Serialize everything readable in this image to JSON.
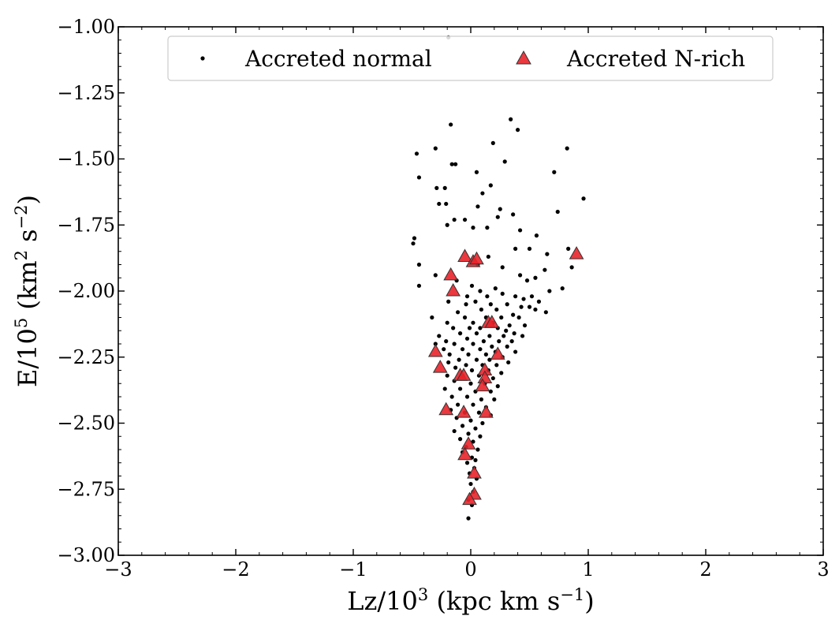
{
  "chart_data": {
    "type": "scatter",
    "xlabel": "Lz/10",
    "xlabel_exp": "3",
    "xlabel_unit_prefix": " (kpc km s",
    "xlabel_unit_exp": "−1",
    "xlabel_unit_suffix": ")",
    "ylabel": "E/10",
    "ylabel_exp": "5",
    "ylabel_unit_prefix": " (km",
    "ylabel_unit_exp1": "2",
    "ylabel_unit_mid": " s",
    "ylabel_unit_exp2": "−2",
    "ylabel_unit_suffix": ")",
    "xlim": [
      -3,
      3
    ],
    "ylim": [
      -3.0,
      -1.0
    ],
    "xticks": [
      -3,
      -2,
      -1,
      0,
      1,
      2,
      3
    ],
    "xtick_labels": [
      "−3",
      "−2",
      "−1",
      "0",
      "1",
      "2",
      "3"
    ],
    "yticks": [
      -1.0,
      -1.25,
      -1.5,
      -1.75,
      -2.0,
      -2.25,
      -2.5,
      -2.75,
      -3.0
    ],
    "ytick_labels": [
      "−1.00",
      "−1.25",
      "−1.50",
      "−1.75",
      "−2.00",
      "−2.25",
      "−2.50",
      "−2.75",
      "−3.00"
    ],
    "grid": false,
    "legend_position": "top",
    "series": [
      {
        "name": "Accreted normal",
        "marker": "dot",
        "color": "#000000",
        "points": [
          [
            -0.19,
            -1.04
          ],
          [
            0.34,
            -1.35
          ],
          [
            0.4,
            -1.39
          ],
          [
            -0.17,
            -1.37
          ],
          [
            0.19,
            -1.44
          ],
          [
            0.82,
            -1.46
          ],
          [
            -0.46,
            -1.48
          ],
          [
            -0.3,
            -1.46
          ],
          [
            -0.16,
            -1.52
          ],
          [
            -0.13,
            -1.52
          ],
          [
            0.29,
            -1.51
          ],
          [
            0.05,
            -1.55
          ],
          [
            0.71,
            -1.55
          ],
          [
            -0.44,
            -1.57
          ],
          [
            0.17,
            -1.6
          ],
          [
            -0.29,
            -1.61
          ],
          [
            -0.22,
            -1.61
          ],
          [
            0.1,
            -1.63
          ],
          [
            0.96,
            -1.65
          ],
          [
            -0.27,
            -1.67
          ],
          [
            -0.21,
            -1.67
          ],
          [
            0.06,
            -1.68
          ],
          [
            0.25,
            -1.69
          ],
          [
            0.74,
            -1.7
          ],
          [
            0.36,
            -1.71
          ],
          [
            -0.14,
            -1.73
          ],
          [
            0.23,
            -1.72
          ],
          [
            -0.05,
            -1.73
          ],
          [
            -0.2,
            -1.75
          ],
          [
            0.02,
            -1.76
          ],
          [
            0.14,
            -1.76
          ],
          [
            0.42,
            -1.77
          ],
          [
            -0.48,
            -1.8
          ],
          [
            -0.49,
            -1.82
          ],
          [
            0.56,
            -1.79
          ],
          [
            0.5,
            -1.84
          ],
          [
            0.83,
            -1.84
          ],
          [
            0.38,
            -1.84
          ],
          [
            0.65,
            -1.86
          ],
          [
            0.15,
            -1.87
          ],
          [
            -0.44,
            -1.9
          ],
          [
            0.06,
            -1.9
          ],
          [
            0.27,
            -1.91
          ],
          [
            0.63,
            -1.92
          ],
          [
            0.86,
            -1.91
          ],
          [
            -0.3,
            -1.94
          ],
          [
            -0.12,
            -1.96
          ],
          [
            0.42,
            -1.94
          ],
          [
            0.55,
            -1.95
          ],
          [
            0.48,
            -1.96
          ],
          [
            -0.44,
            -1.98
          ],
          [
            0.78,
            -1.99
          ],
          [
            0.01,
            -1.98
          ],
          [
            0.21,
            -1.99
          ],
          [
            0.08,
            -2.0
          ],
          [
            0.67,
            -2.0
          ],
          [
            -0.03,
            -2.02
          ],
          [
            0.14,
            -2.02
          ],
          [
            0.27,
            -2.01
          ],
          [
            0.38,
            -2.02
          ],
          [
            0.45,
            -2.03
          ],
          [
            0.52,
            -2.02
          ],
          [
            0.58,
            -2.04
          ],
          [
            -0.19,
            -2.04
          ],
          [
            -0.04,
            -2.05
          ],
          [
            0.04,
            -2.04
          ],
          [
            0.17,
            -2.05
          ],
          [
            0.31,
            -2.05
          ],
          [
            0.43,
            -2.06
          ],
          [
            0.5,
            -2.06
          ],
          [
            0.55,
            -2.07
          ],
          [
            -0.11,
            -2.08
          ],
          [
            0.09,
            -2.07
          ],
          [
            0.22,
            -2.07
          ],
          [
            0.36,
            -2.09
          ],
          [
            0.64,
            -2.08
          ],
          [
            -0.33,
            -2.1
          ],
          [
            -0.05,
            -2.1
          ],
          [
            0.13,
            -2.1
          ],
          [
            0.26,
            -2.1
          ],
          [
            0.41,
            -2.1
          ],
          [
            -0.2,
            -2.12
          ],
          [
            0.02,
            -2.12
          ],
          [
            0.19,
            -2.12
          ],
          [
            0.33,
            -2.13
          ],
          [
            0.46,
            -2.13
          ],
          [
            -0.15,
            -2.14
          ],
          [
            -0.01,
            -2.14
          ],
          [
            0.08,
            -2.14
          ],
          [
            0.23,
            -2.14
          ],
          [
            0.3,
            -2.15
          ],
          [
            0.37,
            -2.16
          ],
          [
            -0.27,
            -2.17
          ],
          [
            -0.09,
            -2.16
          ],
          [
            0.05,
            -2.16
          ],
          [
            0.16,
            -2.17
          ],
          [
            0.28,
            -2.17
          ],
          [
            0.44,
            -2.17
          ],
          [
            -0.21,
            -2.19
          ],
          [
            -0.03,
            -2.18
          ],
          [
            0.11,
            -2.19
          ],
          [
            0.24,
            -2.19
          ],
          [
            0.35,
            -2.19
          ],
          [
            -0.3,
            -2.2
          ],
          [
            -0.14,
            -2.2
          ],
          [
            0.02,
            -2.2
          ],
          [
            0.18,
            -2.21
          ],
          [
            0.31,
            -2.21
          ],
          [
            -0.23,
            -2.22
          ],
          [
            -0.07,
            -2.22
          ],
          [
            0.08,
            -2.22
          ],
          [
            0.21,
            -2.23
          ],
          [
            0.38,
            -2.23
          ],
          [
            -0.18,
            -2.24
          ],
          [
            -0.02,
            -2.24
          ],
          [
            0.13,
            -2.24
          ],
          [
            0.27,
            -2.25
          ],
          [
            -0.1,
            -2.26
          ],
          [
            0.05,
            -2.26
          ],
          [
            0.16,
            -2.26
          ],
          [
            0.32,
            -2.27
          ],
          [
            -0.19,
            -2.27
          ],
          [
            -0.04,
            -2.28
          ],
          [
            0.1,
            -2.28
          ],
          [
            0.22,
            -2.28
          ],
          [
            -0.13,
            -2.29
          ],
          [
            0.01,
            -2.3
          ],
          [
            0.15,
            -2.3
          ],
          [
            0.26,
            -2.31
          ],
          [
            -0.2,
            -2.32
          ],
          [
            -0.07,
            -2.32
          ],
          [
            0.07,
            -2.32
          ],
          [
            0.19,
            -2.33
          ],
          [
            -0.14,
            -2.34
          ],
          [
            0.0,
            -2.35
          ],
          [
            0.12,
            -2.35
          ],
          [
            0.23,
            -2.36
          ],
          [
            -0.22,
            -2.37
          ],
          [
            -0.09,
            -2.37
          ],
          [
            0.04,
            -2.38
          ],
          [
            0.17,
            -2.38
          ],
          [
            -0.16,
            -2.4
          ],
          [
            -0.03,
            -2.4
          ],
          [
            0.09,
            -2.41
          ],
          [
            0.2,
            -2.41
          ],
          [
            -0.11,
            -2.43
          ],
          [
            0.02,
            -2.43
          ],
          [
            0.13,
            -2.44
          ],
          [
            -0.17,
            -2.45
          ],
          [
            -0.05,
            -2.46
          ],
          [
            0.07,
            -2.46
          ],
          [
            0.17,
            -2.47
          ],
          [
            -0.12,
            -2.48
          ],
          [
            0.0,
            -2.49
          ],
          [
            0.1,
            -2.5
          ],
          [
            -0.07,
            -2.51
          ],
          [
            0.04,
            -2.52
          ],
          [
            -0.14,
            -2.53
          ],
          [
            -0.02,
            -2.54
          ],
          [
            0.08,
            -2.55
          ],
          [
            -0.09,
            -2.56
          ],
          [
            0.02,
            -2.57
          ],
          [
            -0.04,
            -2.59
          ],
          [
            0.06,
            -2.6
          ],
          [
            -0.07,
            -2.61
          ],
          [
            0.01,
            -2.63
          ],
          [
            0.04,
            -2.64
          ],
          [
            -0.03,
            -2.65
          ],
          [
            0.03,
            -2.67
          ],
          [
            -0.01,
            -2.69
          ],
          [
            0.05,
            -2.71
          ],
          [
            0.0,
            -2.73
          ],
          [
            0.02,
            -2.76
          ],
          [
            -0.02,
            -2.79
          ],
          [
            0.01,
            -2.81
          ],
          [
            -0.02,
            -2.86
          ]
        ]
      },
      {
        "name": "Accreted N-rich",
        "marker": "triangle",
        "color": "#e8232a",
        "points": [
          [
            0.9,
            -1.86
          ],
          [
            -0.05,
            -1.87
          ],
          [
            0.02,
            -1.89
          ],
          [
            0.05,
            -1.88
          ],
          [
            -0.17,
            -1.94
          ],
          [
            -0.15,
            -2.0
          ],
          [
            0.15,
            -2.12
          ],
          [
            0.18,
            -2.12
          ],
          [
            -0.3,
            -2.23
          ],
          [
            0.23,
            -2.24
          ],
          [
            -0.26,
            -2.29
          ],
          [
            0.12,
            -2.3
          ],
          [
            -0.09,
            -2.32
          ],
          [
            -0.06,
            -2.32
          ],
          [
            0.12,
            -2.33
          ],
          [
            0.1,
            -2.36
          ],
          [
            -0.21,
            -2.45
          ],
          [
            -0.06,
            -2.46
          ],
          [
            0.13,
            -2.46
          ],
          [
            -0.02,
            -2.58
          ],
          [
            -0.05,
            -2.62
          ],
          [
            0.03,
            -2.69
          ],
          [
            0.03,
            -2.77
          ],
          [
            -0.01,
            -2.79
          ]
        ]
      }
    ]
  }
}
